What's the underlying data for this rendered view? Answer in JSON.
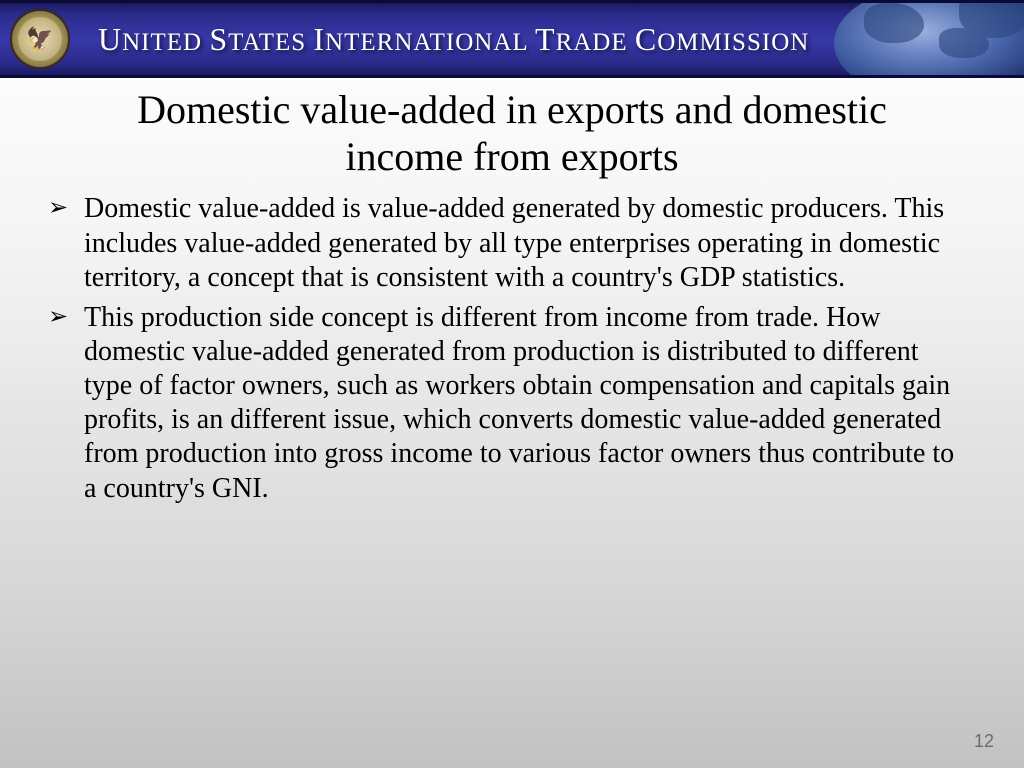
{
  "header": {
    "org_name_parts": [
      "U",
      "NITED ",
      "S",
      "TATES ",
      "I",
      "NTERNATIONAL ",
      "T",
      "RADE ",
      "C",
      "OMMISSION"
    ],
    "seal_glyph": "🦅",
    "banner_gradient": [
      "#1a1a5e",
      "#3838a8",
      "#1a1a5e"
    ],
    "title_color": "#ffffff"
  },
  "slide": {
    "title": "Domestic value-added in exports and domestic income from exports",
    "title_fontsize": 40,
    "body_fontsize": 28,
    "bullets": [
      "Domestic value-added is value-added generated by domestic producers. This includes value-added generated by all type enterprises operating in domestic territory, a concept that is consistent with a country's GDP statistics.",
      "This production side concept is different from income from trade. How domestic value-added generated from production is distributed to different type of factor owners, such as workers obtain compensation and capitals gain profits, is an different issue,  which converts domestic value-added generated from production into gross income to various factor owners thus contribute to a country's GNI."
    ],
    "bullet_marker": "➢",
    "background_gradient": [
      "#ffffff",
      "#c2c2c2"
    ]
  },
  "page_number": "12",
  "page_number_color": "#6a6a6a"
}
